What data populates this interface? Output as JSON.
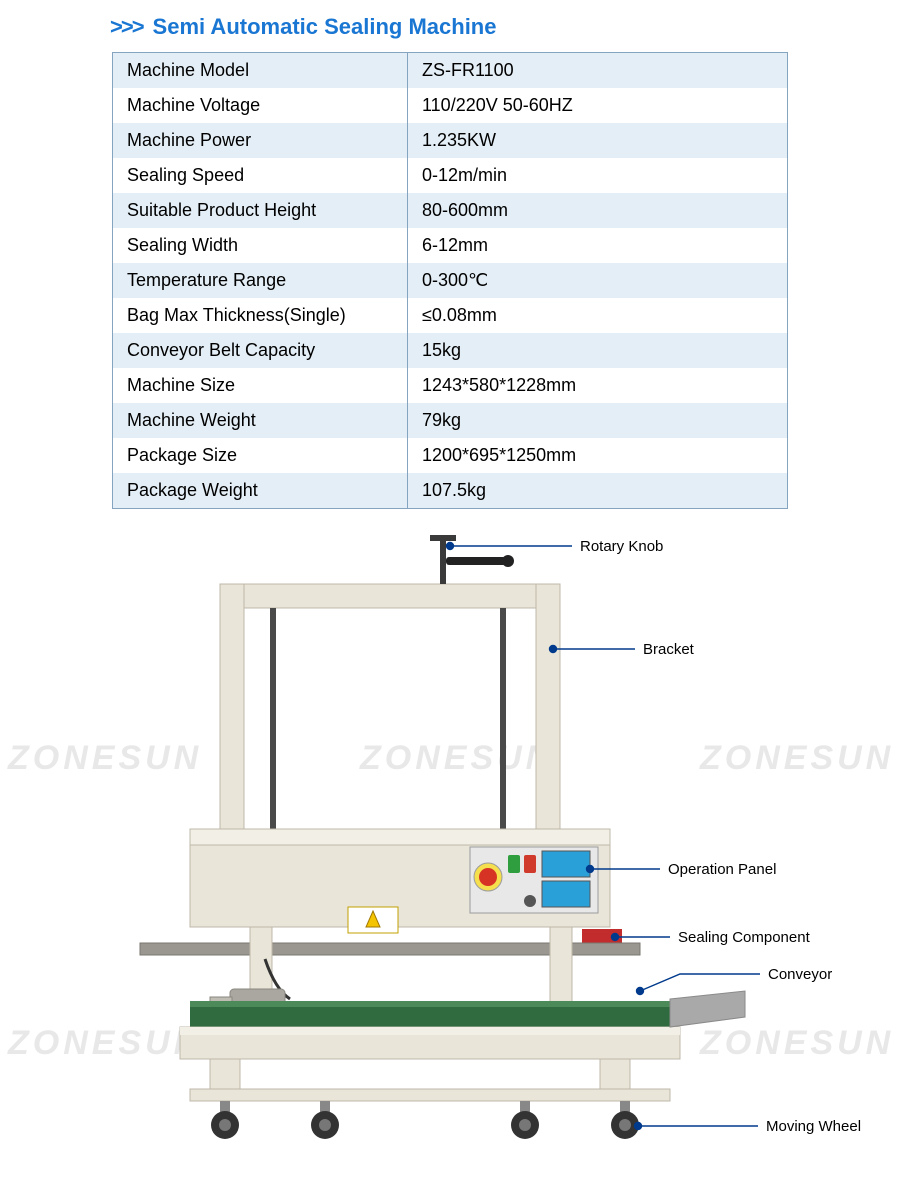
{
  "title": {
    "chevrons": ">>>",
    "text": "Semi Automatic Sealing Machine",
    "color": "#1976d2",
    "fontsize": 22
  },
  "spec_table": {
    "border_color": "#85a4c0",
    "row_bg_odd": "#e4eef6",
    "row_bg_even": "#ffffff",
    "font_size": 18,
    "col1_width": 295,
    "total_width": 676,
    "rows": [
      {
        "label": "Machine Model",
        "value": "ZS-FR1100"
      },
      {
        "label": "Machine Voltage",
        "value": "110/220V 50-60HZ"
      },
      {
        "label": "Machine Power",
        "value": "1.235KW"
      },
      {
        "label": "Sealing Speed",
        "value": "0-12m/min"
      },
      {
        "label": "Suitable Product Height",
        "value": "80-600mm"
      },
      {
        "label": "Sealing Width",
        "value": "6-12mm"
      },
      {
        "label": "Temperature Range",
        "value": "0-300℃"
      },
      {
        "label": "Bag Max Thickness(Single)",
        "value": "≤0.08mm"
      },
      {
        "label": "Conveyor Belt Capacity",
        "value": "15kg"
      },
      {
        "label": "Machine Size",
        "value": "1243*580*1228mm"
      },
      {
        "label": "Machine Weight",
        "value": "79kg"
      },
      {
        "label": "Package Size",
        "value": "1200*695*1250mm"
      },
      {
        "label": "Package Weight",
        "value": "107.5kg"
      }
    ]
  },
  "diagram": {
    "watermark_text": "ZONESUN",
    "watermark_color": "#e8e8e8",
    "callout_line_color": "#003a8c",
    "callout_dot_color": "#003a8c",
    "callout_font_size": 15,
    "machine_body_color": "#e9e5d8",
    "machine_body_shadow": "#cfcabb",
    "panel_bg": "#e8e8e8",
    "estop_color": "#d63324",
    "button_green": "#2e9e3f",
    "button_red": "#d03a2c",
    "display_blue": "#2aa0d8",
    "conveyor_green": "#2f6b3f",
    "conveyor_frame": "#e9e5d8",
    "wheel_color": "#333333",
    "bracket_color": "#e9e5d8",
    "rod_color": "#4a4a4a",
    "sealing_bar_color": "#9a9790",
    "red_block_color": "#c22c2c",
    "tray_color": "#a9a9a9",
    "callouts": {
      "rotary_knob": "Rotary Knob",
      "bracket": "Bracket",
      "operation_panel": "Operation Panel",
      "sealing_component": "Sealing Component",
      "conveyor": "Conveyor",
      "moving_wheel": "Moving Wheel"
    }
  }
}
